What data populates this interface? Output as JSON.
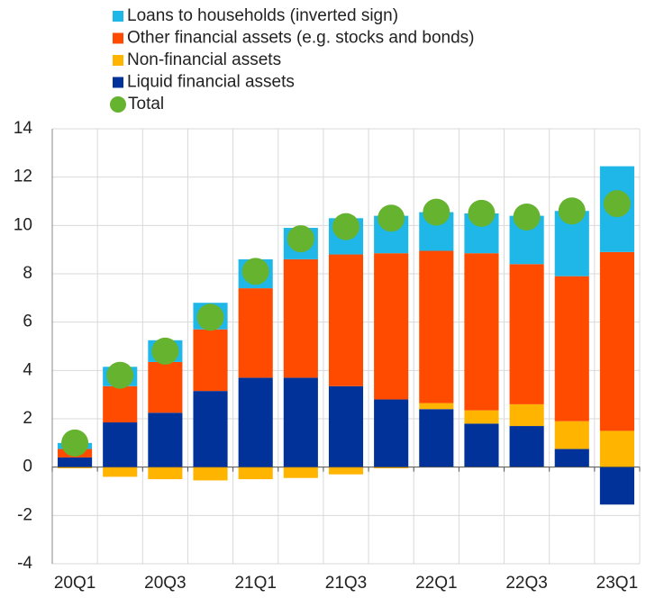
{
  "chart_data": {
    "type": "stacked_bar",
    "categories": [
      "20Q1",
      null,
      "20Q3",
      null,
      "21Q1",
      null,
      "21Q3",
      null,
      "22Q1",
      null,
      "22Q3",
      null,
      "23Q1"
    ],
    "series": [
      {
        "name": "Loans to households (inverted sign)",
        "color": "#1fb7e8",
        "values": [
          0.25,
          0.8,
          0.9,
          1.1,
          1.2,
          1.3,
          1.5,
          1.55,
          1.6,
          1.65,
          2.0,
          2.7,
          3.55
        ]
      },
      {
        "name": "Other financial assets (e.g. stocks and bonds)",
        "color": "#ff4b00",
        "values": [
          0.35,
          1.5,
          2.1,
          2.55,
          3.7,
          4.9,
          5.45,
          6.05,
          6.3,
          6.5,
          5.8,
          6.0,
          7.4
        ]
      },
      {
        "name": "Non-financial assets",
        "color": "#ffb400",
        "values": [
          -0.05,
          -0.4,
          -0.5,
          -0.55,
          -0.5,
          -0.45,
          -0.3,
          -0.05,
          0.25,
          0.55,
          0.9,
          1.15,
          1.5
        ]
      },
      {
        "name": "Liquid financial assets",
        "color": "#003299",
        "values": [
          0.4,
          1.85,
          2.25,
          3.15,
          3.7,
          3.7,
          3.35,
          2.8,
          2.4,
          1.8,
          1.7,
          0.75,
          -1.55
        ]
      }
    ],
    "total": {
      "name": "Total",
      "color": "#65b32e",
      "values": [
        1.0,
        3.8,
        4.8,
        6.2,
        8.1,
        9.45,
        9.95,
        10.3,
        10.55,
        10.5,
        10.35,
        10.6,
        10.9
      ]
    },
    "ylim": [
      -4,
      14
    ],
    "yticks": [
      -4,
      -2,
      0,
      2,
      4,
      6,
      8,
      10,
      12,
      14
    ],
    "grid": true
  }
}
